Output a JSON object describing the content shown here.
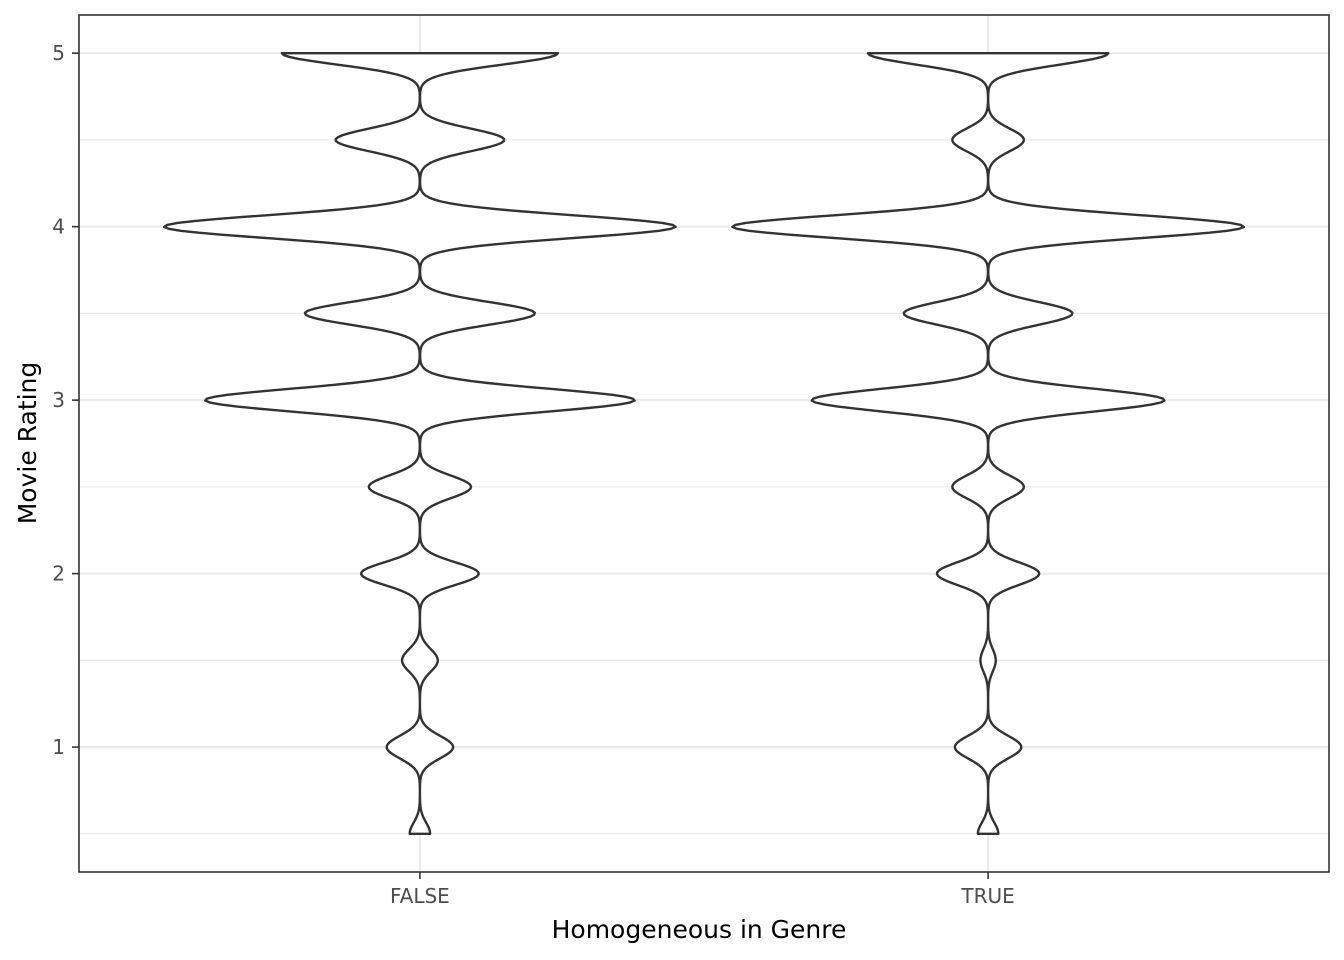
{
  "chart_data": {
    "type": "violin",
    "xlabel": "Homogeneous in Genre",
    "ylabel": "Movie Rating",
    "categories": [
      "FALSE",
      "TRUE"
    ],
    "ylim": [
      0.28,
      5.22
    ],
    "y_ticks": [
      1,
      2,
      3,
      4,
      5
    ],
    "y_minor_ticks": [
      0.5,
      1.5,
      2.5,
      3.5,
      4.5
    ],
    "grid": true,
    "theme": "black-and-white",
    "outline_color": "#333333",
    "grid_color": "#ebebeb",
    "density_levels": [
      0.5,
      1,
      1.5,
      2,
      2.5,
      3,
      3.5,
      4,
      4.5,
      5
    ],
    "series": [
      {
        "category": "FALSE",
        "max_density_fraction": [
          0.04,
          0.13,
          0.07,
          0.23,
          0.2,
          0.84,
          0.45,
          1.0,
          0.33,
          0.54
        ]
      },
      {
        "category": "TRUE",
        "max_density_fraction": [
          0.04,
          0.13,
          0.03,
          0.2,
          0.14,
          0.69,
          0.33,
          1.0,
          0.14,
          0.47
        ]
      }
    ]
  }
}
